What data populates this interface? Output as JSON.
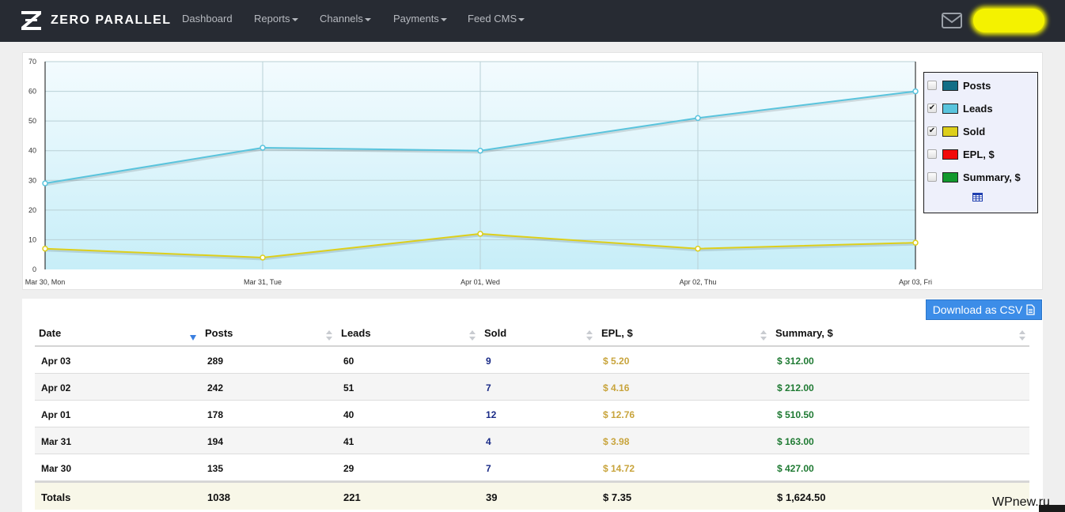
{
  "brand": {
    "name": "ZERO PARALLEL"
  },
  "nav": [
    {
      "label": "Dashboard",
      "dropdown": false
    },
    {
      "label": "Reports",
      "dropdown": true
    },
    {
      "label": "Channels",
      "dropdown": true
    },
    {
      "label": "Payments",
      "dropdown": true
    },
    {
      "label": "Feed CMS",
      "dropdown": true
    }
  ],
  "header_icons": [
    "mail-icon",
    "user-avatar-redacted"
  ],
  "legend": {
    "items": [
      {
        "label": "Posts",
        "checked": false,
        "color": "#126e86"
      },
      {
        "label": "Leads",
        "checked": true,
        "color": "#59c4dd"
      },
      {
        "label": "Sold",
        "checked": true,
        "color": "#ddcf1b"
      },
      {
        "label": "EPL, $",
        "checked": false,
        "color": "#f20a0a"
      },
      {
        "label": "Summary, $",
        "checked": false,
        "color": "#12992d"
      }
    ],
    "table_icon": "table-icon"
  },
  "chart_data": {
    "type": "line",
    "x": [
      "Mar 30, Mon",
      "Mar 31, Tue",
      "Apr 01, Wed",
      "Apr 02, Thu",
      "Apr 03, Fri"
    ],
    "ylim": [
      0,
      70
    ],
    "yticks": [
      "0",
      "10",
      "20",
      "30",
      "40",
      "50",
      "60",
      "70"
    ],
    "grid": true,
    "legend_position": "right",
    "series": [
      {
        "name": "Leads",
        "values": [
          29,
          41,
          40,
          51,
          60
        ],
        "color": "#59c4dd"
      },
      {
        "name": "Sold",
        "values": [
          7,
          4,
          12,
          7,
          9
        ],
        "color": "#ddcf1b"
      }
    ]
  },
  "download": {
    "label": "Download as CSV",
    "icon": "file-icon"
  },
  "table": {
    "headers": [
      "Date",
      "Posts",
      "Leads",
      "Sold",
      "EPL, $",
      "Summary, $"
    ],
    "rows": [
      [
        "Apr 03",
        "289",
        "60",
        "9",
        "$ 5.20",
        "$ 312.00"
      ],
      [
        "Apr 02",
        "242",
        "51",
        "7",
        "$ 4.16",
        "$ 212.00"
      ],
      [
        "Apr 01",
        "178",
        "40",
        "12",
        "$ 12.76",
        "$ 510.50"
      ],
      [
        "Mar 31",
        "194",
        "41",
        "4",
        "$ 3.98",
        "$ 163.00"
      ],
      [
        "Mar 30",
        "135",
        "29",
        "7",
        "$ 14.72",
        "$ 427.00"
      ]
    ],
    "totals": [
      "Totals",
      "1038",
      "221",
      "39",
      "$ 7.35",
      "$ 1,624.50"
    ]
  },
  "watermark": "WPnew.ru"
}
